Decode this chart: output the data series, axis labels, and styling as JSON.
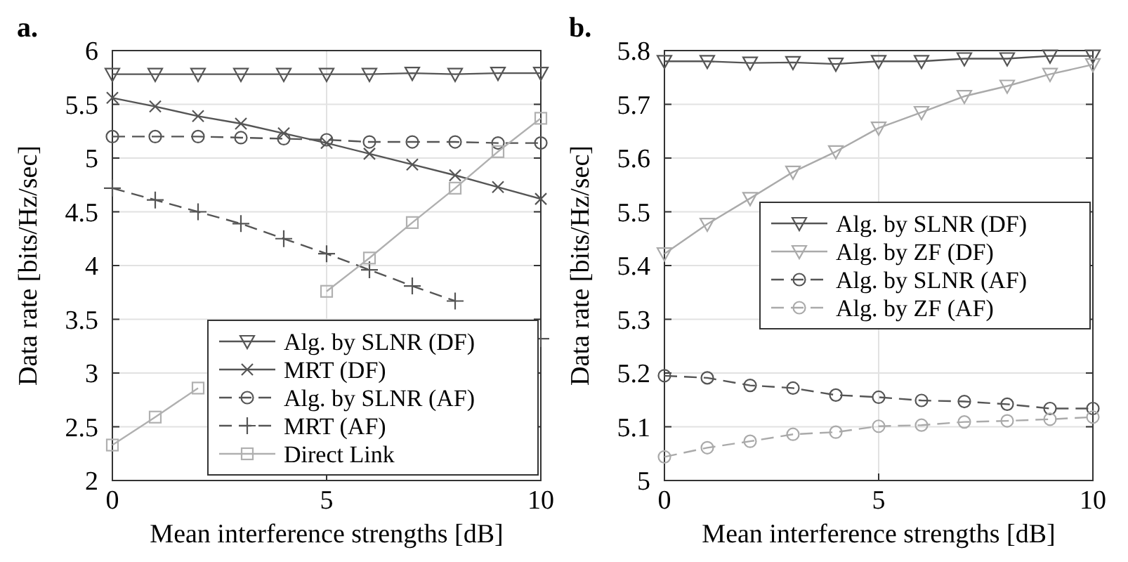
{
  "chart_data": [
    {
      "type": "line",
      "title": "a.",
      "xlabel": "Mean interference strengths [dB]",
      "ylabel": "Data rate [bits/Hz/sec]",
      "x": [
        0,
        1,
        2,
        3,
        4,
        5,
        6,
        7,
        8,
        9,
        10
      ],
      "xlim": [
        0,
        10
      ],
      "xticks": [
        0,
        5,
        10
      ],
      "ylim": [
        2,
        6
      ],
      "yticks": [
        2,
        2.5,
        3,
        3.5,
        4,
        4.5,
        5,
        5.5,
        6
      ],
      "grid": true,
      "legend": "bottom right",
      "series": [
        {
          "name": "Alg. by SLNR (DF)",
          "color": "#555555",
          "marker": "triangle",
          "line_style": "solid",
          "values": [
            5.78,
            5.78,
            5.78,
            5.78,
            5.78,
            5.78,
            5.78,
            5.79,
            5.78,
            5.79,
            5.79
          ]
        },
        {
          "name": "MRT (DF)",
          "color": "#555555",
          "marker": "cross",
          "line_style": "solid",
          "values": [
            5.56,
            5.48,
            5.39,
            5.32,
            5.23,
            5.14,
            5.04,
            4.94,
            4.84,
            4.73,
            4.62
          ]
        },
        {
          "name": "Alg. by SLNR (AF)",
          "color": "#555555",
          "marker": "circle",
          "line_style": "dashed",
          "values": [
            5.2,
            5.2,
            5.2,
            5.19,
            5.18,
            5.17,
            5.15,
            5.15,
            5.15,
            5.14,
            5.14
          ]
        },
        {
          "name": "MRT (AF)",
          "color": "#555555",
          "marker": "plus",
          "line_style": "dashed",
          "values": [
            4.72,
            4.61,
            4.5,
            4.39,
            4.25,
            4.11,
            3.96,
            3.81,
            3.67,
            null,
            3.32
          ]
        },
        {
          "name": "Direct Link",
          "color": "#b0b0b0",
          "marker": "square",
          "line_style": "solid",
          "values": [
            2.33,
            2.59,
            2.86,
            null,
            null,
            3.76,
            4.07,
            4.4,
            4.72,
            5.06,
            5.37
          ]
        }
      ]
    },
    {
      "type": "line",
      "title": "b.",
      "xlabel": "Mean interference strengths [dB]",
      "ylabel": "Data rate [bits/Hz/sec]",
      "x": [
        0,
        1,
        2,
        3,
        4,
        5,
        6,
        7,
        8,
        9,
        10
      ],
      "xlim": [
        0,
        10
      ],
      "xticks": [
        0,
        5,
        10
      ],
      "ylim": [
        5,
        5.8
      ],
      "yticks": [
        5,
        5.1,
        5.2,
        5.3,
        5.4,
        5.5,
        5.6,
        5.7,
        5.8
      ],
      "grid": true,
      "legend": "right",
      "series": [
        {
          "name": "Alg. by SLNR (DF)",
          "color": "#555555",
          "marker": "triangle",
          "line_style": "solid",
          "values": [
            5.78,
            5.78,
            5.777,
            5.778,
            5.775,
            5.78,
            5.78,
            5.785,
            5.785,
            5.79,
            5.79
          ]
        },
        {
          "name": "Alg. by ZF (DF)",
          "color": "#aaaaaa",
          "marker": "triangle",
          "line_style": "solid",
          "values": [
            5.422,
            5.477,
            5.525,
            5.574,
            5.612,
            5.656,
            5.685,
            5.715,
            5.734,
            5.756,
            5.774
          ]
        },
        {
          "name": "Alg. by SLNR (AF)",
          "color": "#555555",
          "marker": "circle",
          "line_style": "dashed",
          "values": [
            5.195,
            5.191,
            5.177,
            5.172,
            5.159,
            5.155,
            5.149,
            5.147,
            5.142,
            5.134,
            5.134
          ]
        },
        {
          "name": "Alg. by ZF (AF)",
          "color": "#aaaaaa",
          "marker": "circle",
          "line_style": "dashed",
          "values": [
            5.044,
            5.061,
            5.073,
            5.086,
            5.09,
            5.101,
            5.103,
            5.109,
            5.111,
            5.114,
            5.118
          ]
        }
      ]
    }
  ]
}
